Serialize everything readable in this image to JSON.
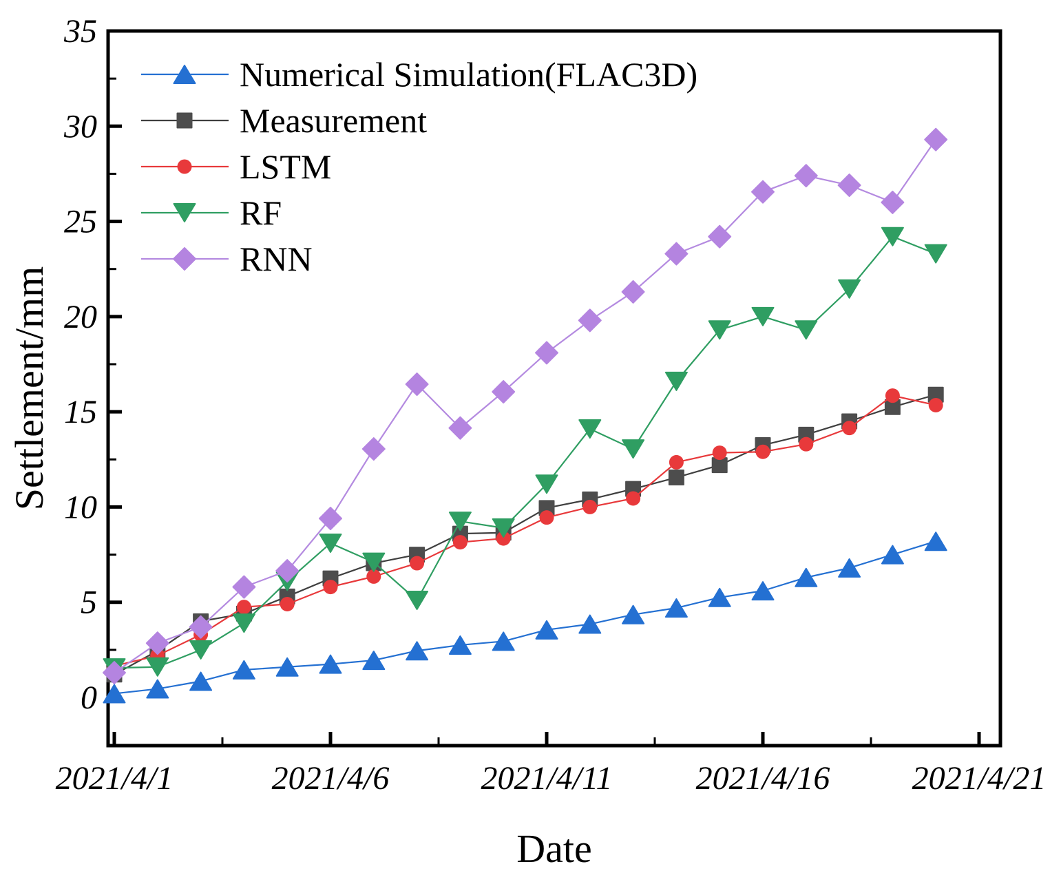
{
  "chart_data": {
    "type": "line",
    "title": "",
    "xlabel": "Date",
    "ylabel": "Settlement/mm",
    "grid": false,
    "legend_position": "top-left-inside",
    "xlim_days": [
      0.86,
      21.5
    ],
    "ylim": [
      -2.5,
      35
    ],
    "yticks": [
      0,
      5,
      10,
      15,
      20,
      25,
      30,
      35
    ],
    "y_minor_ticks": [
      2.5,
      7.5,
      12.5,
      17.5,
      22.5,
      27.5,
      32.5
    ],
    "xticks": [
      {
        "label": "2021/4/1",
        "day": 1
      },
      {
        "label": "2021/4/6",
        "day": 6
      },
      {
        "label": "2021/4/11",
        "day": 11
      },
      {
        "label": "2021/4/16",
        "day": 16
      },
      {
        "label": "2021/4/21",
        "day": 21
      }
    ],
    "x_minor_tick_days": [
      3.5,
      8.5,
      13.5,
      18.5
    ],
    "x_dates": [
      "2021/4/1",
      "2021/4/2",
      "2021/4/3",
      "2021/4/4",
      "2021/4/5",
      "2021/4/6",
      "2021/4/7",
      "2021/4/8",
      "2021/4/9",
      "2021/4/10",
      "2021/4/11",
      "2021/4/12",
      "2021/4/13",
      "2021/4/14",
      "2021/4/15",
      "2021/4/16",
      "2021/4/17",
      "2021/4/18",
      "2021/4/19",
      "2021/4/20"
    ],
    "x_days": [
      1,
      2,
      3,
      4,
      5,
      6,
      7,
      8,
      9,
      10,
      11,
      12,
      13,
      14,
      15,
      16,
      17,
      18,
      19,
      20
    ],
    "series": [
      {
        "name": "Numerical Simulation(FLAC3D)",
        "marker": "triangle-up",
        "color": "#2470d2",
        "line_color": "#2470d2",
        "values": [
          0.2,
          0.45,
          0.85,
          1.45,
          1.6,
          1.75,
          1.95,
          2.45,
          2.75,
          2.95,
          3.55,
          3.85,
          4.35,
          4.7,
          5.25,
          5.6,
          6.3,
          6.8,
          7.5,
          8.2
        ]
      },
      {
        "name": "Measurement",
        "marker": "square",
        "color": "#4d4d4d",
        "line_color": "#3f3f3f",
        "values": [
          1.2,
          2.45,
          4.0,
          4.4,
          5.3,
          6.25,
          7.05,
          7.5,
          8.6,
          8.65,
          9.95,
          10.4,
          10.95,
          11.55,
          12.2,
          13.25,
          13.8,
          14.5,
          15.25,
          15.9
        ]
      },
      {
        "name": "LSTM",
        "marker": "circle",
        "color": "#e8393b",
        "line_color": "#e8393b",
        "values": [
          1.65,
          2.2,
          3.3,
          4.75,
          4.9,
          5.8,
          6.35,
          7.05,
          8.15,
          8.35,
          9.45,
          10.0,
          10.45,
          12.35,
          12.85,
          12.9,
          13.3,
          14.15,
          15.85,
          15.35
        ]
      },
      {
        "name": "RF",
        "marker": "triangle-down",
        "color": "#2f9e62",
        "line_color": "#2f9e62",
        "values": [
          1.55,
          1.6,
          2.5,
          3.9,
          6.1,
          8.1,
          7.1,
          5.1,
          9.25,
          8.9,
          11.2,
          14.1,
          13.05,
          16.6,
          19.3,
          20.0,
          19.3,
          21.45,
          24.2,
          23.3
        ]
      },
      {
        "name": "RNN",
        "marker": "diamond",
        "color": "#b484e0",
        "line_color": "#b48ae0",
        "values": [
          1.3,
          2.85,
          3.7,
          5.8,
          6.65,
          9.4,
          13.05,
          16.45,
          14.15,
          16.05,
          18.1,
          19.8,
          21.3,
          23.3,
          24.2,
          26.55,
          27.4,
          26.9,
          26.0,
          29.3
        ]
      }
    ]
  }
}
